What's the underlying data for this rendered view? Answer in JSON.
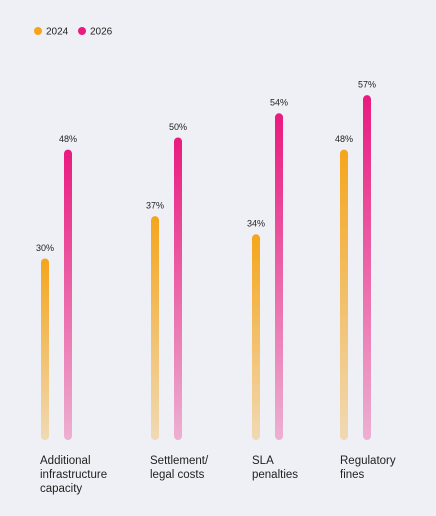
{
  "chart_data": {
    "type": "bar",
    "categories": [
      "Additional infrastructure capacity",
      "Settlement/ legal costs",
      "SLA penalties",
      "Regulatory fines"
    ],
    "series": [
      {
        "name": "2024",
        "color": "#f5a51c",
        "values": [
          30,
          37,
          34,
          48
        ],
        "value_labels": [
          "30%",
          "37%",
          "34%",
          "48%"
        ]
      },
      {
        "name": "2026",
        "color": "#ea1a7f",
        "values": [
          48,
          50,
          54,
          57
        ],
        "value_labels": [
          "48%",
          "50%",
          "54%",
          "57%"
        ]
      }
    ]
  }
}
